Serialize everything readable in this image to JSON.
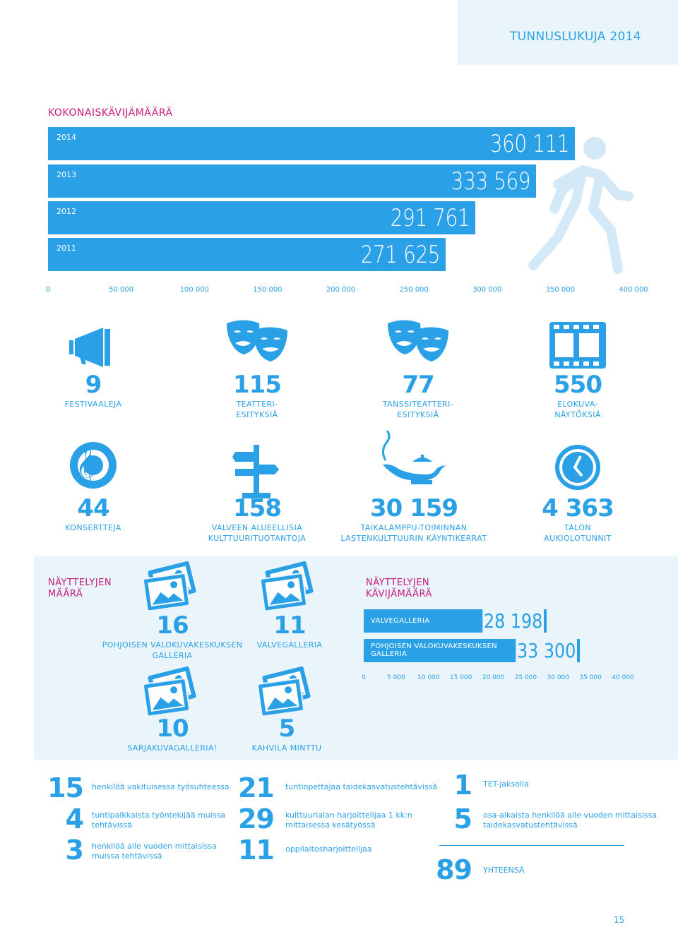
{
  "header": {
    "title": "TUNNUSLUKUJA 2014"
  },
  "visitors": {
    "title": "KOKONAISKÄVIJÄMÄÄRÄ",
    "ticks": [
      "0",
      "50 000",
      "100 000",
      "150 000",
      "200 000",
      "250 000",
      "300 000",
      "350 000",
      "400 000"
    ]
  },
  "chart_data": [
    {
      "type": "bar",
      "categories": [
        "2014",
        "2013",
        "2012",
        "2011"
      ],
      "values": [
        360111,
        333569,
        291761,
        271625
      ],
      "value_labels": [
        "360 111",
        "333 569",
        "291 761",
        "271 625"
      ],
      "title": "KOKONAISKÄVIJÄMÄÄRÄ",
      "xlim": [
        0,
        400000
      ],
      "orientation": "horizontal"
    },
    {
      "type": "bar",
      "categories": [
        "VALVEGALLERIA",
        "POHJOISEN VALOKUVAKESKUKSEN GALLERIA"
      ],
      "values": [
        28198,
        33300
      ],
      "value_labels": [
        "28 198",
        "33 300"
      ],
      "title": "NÄYTTELYJEN KÄVIJÄMÄÄRÄ",
      "xlim": [
        0,
        40000
      ],
      "orientation": "horizontal"
    }
  ],
  "stats_row1": [
    {
      "num": "9",
      "label1": "FESTIVAALEJA",
      "label2": "",
      "icon": "megaphone-icon"
    },
    {
      "num": "115",
      "label1": "TEATTERI-",
      "label2": "ESITYKSIÄ",
      "icon": "theater-masks-icon"
    },
    {
      "num": "77",
      "label1": "TANSSITEATTERI-",
      "label2": "ESITYKSIÄ",
      "icon": "theater-masks-icon"
    },
    {
      "num": "550",
      "label1": "ELOKUVA-",
      "label2": "NÄYTÖKSIÄ",
      "icon": "film-strip-icon"
    }
  ],
  "stats_row2": [
    {
      "num": "44",
      "label1": "KONSERTTEJA",
      "label2": "",
      "icon": "treble-clef-speaker-icon"
    },
    {
      "num": "158",
      "label1": "VALVEEN ALUEELLISIA",
      "label2": "KULTTUURITUOTANTOJA",
      "icon": "signpost-icon"
    },
    {
      "num": "30 159",
      "label1": "TAIKALAMPPU-TOIMINNAN",
      "label2": "LASTENKULTTUURIN KÄYNTIKERRAT",
      "icon": "magic-lamp-icon"
    },
    {
      "num": "4 363",
      "label1": "TALON",
      "label2": "AUKIOLOTUNNIT",
      "icon": "clock-icon"
    }
  ],
  "exhibitions": {
    "count_title1": "NÄYTTELYJEN",
    "count_title2": "MÄÄRÄ",
    "visit_title1": "NÄYTTELYJEN",
    "visit_title2": "KÄVIJÄMÄÄRÄ",
    "items": [
      {
        "num": "16",
        "label1": "POHJOISEN VALOKUVAKESKUKSEN",
        "label2": "GALLERIA"
      },
      {
        "num": "11",
        "label1": "VALVEGALLERIA",
        "label2": ""
      },
      {
        "num": "10",
        "label1": "SARJAKUVAGALLERIA!",
        "label2": ""
      },
      {
        "num": "5",
        "label1": "KAHVILA MINTTU",
        "label2": ""
      }
    ],
    "bars": [
      {
        "label1": "VALVEGALLERIA",
        "label2": "",
        "value": "28 198"
      },
      {
        "label1": "POHJOISEN VALOKUVAKESKUKSEN",
        "label2": "GALLERIA",
        "value": "33 300"
      }
    ],
    "ticks": [
      "0",
      "5 000",
      "10 000",
      "15 000",
      "20 000",
      "25 000",
      "30 000",
      "35 000",
      "40 000"
    ]
  },
  "staff": {
    "col1": [
      {
        "num": "15",
        "text1": "henkilöä vakituisessa työsuhteessa",
        "text2": ""
      },
      {
        "num": "4",
        "text1": "tuntipalkkaista työntekijää muissa",
        "text2": "tehtävissä"
      },
      {
        "num": "3",
        "text1": "henkilöä alle vuoden mittaisissa",
        "text2": "muissa tehtävissä"
      }
    ],
    "col2": [
      {
        "num": "21",
        "text1": "tuntiopettajaa taidekasvatustehtävissä",
        "text2": ""
      },
      {
        "num": "29",
        "text1": "kulttuurialan harjoittelijaa 1 kk:n",
        "text2": "mittaisessa kesätyössä"
      },
      {
        "num": "11",
        "text1": "oppilaitosharjoittelijaa",
        "text2": ""
      }
    ],
    "col3": [
      {
        "num": "1",
        "text1": "TET-jaksolla",
        "text2": ""
      },
      {
        "num": "5",
        "text1": "osa-aikaista henkilöä alle vuoden mittaisissa",
        "text2": "taidekasvatustehtävissä"
      }
    ],
    "total": {
      "num": "89",
      "label": "YHTEENSÄ"
    }
  },
  "page_number": "15",
  "colors": {
    "accent": "#2aa0e6",
    "light_panel": "#e9f4fb",
    "title_magenta": "#c8197a"
  }
}
